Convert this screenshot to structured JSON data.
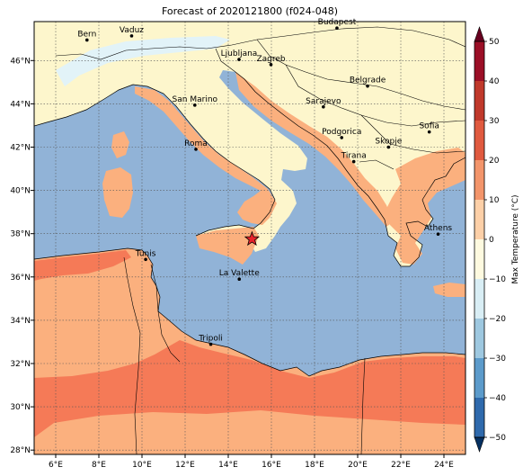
{
  "title": "Forecast of 2020121800 (f024-048)",
  "map": {
    "lon_range": [
      5,
      25
    ],
    "lat_range": [
      27.8,
      47.8
    ],
    "lon_ticks": [
      "6°E",
      "8°E",
      "10°E",
      "12°E",
      "14°E",
      "16°E",
      "18°E",
      "20°E",
      "22°E",
      "24°E"
    ],
    "lat_ticks": [
      "46°N",
      "44°N",
      "42°N",
      "40°N",
      "38°N",
      "36°N",
      "34°N",
      "32°N",
      "30°N",
      "28°N"
    ],
    "grid": true,
    "colors": {
      "sea": "#91b3d7",
      "land_cold": "#fdf6cc",
      "land_mild": "#fbb07e",
      "land_warm": "#f57a57",
      "snow": "#e2f3f8"
    },
    "cities": [
      {
        "name": "Bern",
        "lon": 7.45,
        "lat": 46.95
      },
      {
        "name": "Vaduz",
        "lon": 9.52,
        "lat": 47.14
      },
      {
        "name": "Budapest",
        "lon": 19.04,
        "lat": 47.5
      },
      {
        "name": "Ljubljana",
        "lon": 14.5,
        "lat": 46.05
      },
      {
        "name": "Zagreb",
        "lon": 15.98,
        "lat": 45.81
      },
      {
        "name": "Belgrade",
        "lon": 20.46,
        "lat": 44.82
      },
      {
        "name": "San Marino",
        "lon": 12.45,
        "lat": 43.94
      },
      {
        "name": "Sarajevo",
        "lon": 18.41,
        "lat": 43.86
      },
      {
        "name": "Sofia",
        "lon": 23.32,
        "lat": 42.7
      },
      {
        "name": "Podgorica",
        "lon": 19.26,
        "lat": 42.44
      },
      {
        "name": "Skopje",
        "lon": 21.43,
        "lat": 42.0
      },
      {
        "name": "Roma",
        "lon": 12.5,
        "lat": 41.9
      },
      {
        "name": "Tirana",
        "lon": 19.82,
        "lat": 41.33
      },
      {
        "name": "Athens",
        "lon": 23.73,
        "lat": 37.98
      },
      {
        "name": "Tunis",
        "lon": 10.17,
        "lat": 36.81
      },
      {
        "name": "La Valette",
        "lon": 14.51,
        "lat": 35.9
      },
      {
        "name": "Tripoli",
        "lon": 13.19,
        "lat": 32.89
      }
    ],
    "marker": {
      "name": "star",
      "lon": 15.1,
      "lat": 37.75,
      "color": "#e8222a"
    }
  },
  "colorbar": {
    "label": "Max Temperature (°C)",
    "ticks": [
      "50",
      "40",
      "30",
      "20",
      "10",
      "0",
      "−10",
      "−20",
      "−30",
      "−40",
      "−50"
    ],
    "range": [
      -50,
      50
    ],
    "colors": [
      "#67001f",
      "#b2182b",
      "#d6604d",
      "#f4a582",
      "#fddbc7",
      "#fdf6cc",
      "#e0f3f8",
      "#92c5de",
      "#4393c3",
      "#2166ac",
      "#053061"
    ]
  }
}
